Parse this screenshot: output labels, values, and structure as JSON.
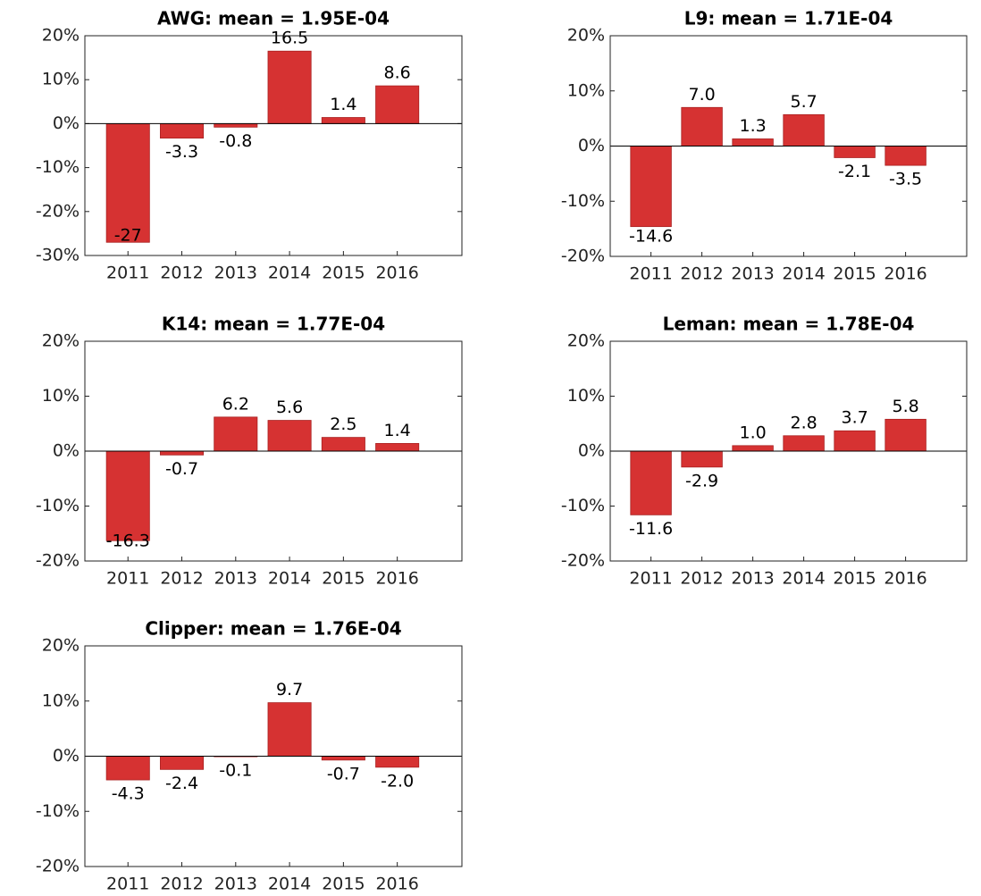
{
  "chart_data": [
    {
      "type": "bar",
      "title": "AWG: mean = 1.95E-04",
      "categories": [
        "2011",
        "2012",
        "2013",
        "2014",
        "2015",
        "2016"
      ],
      "values": [
        -27,
        -3.3,
        -0.8,
        16.5,
        1.4,
        8.6
      ],
      "value_labels": [
        "-27",
        "-3.3",
        "-0.8",
        "16.5",
        "1.4",
        "8.6"
      ],
      "color": "#d63232",
      "ylim": [
        -30,
        20
      ],
      "yticks": [
        {
          "value": -30,
          "label": "-30%"
        },
        {
          "value": -20,
          "label": "-20%"
        },
        {
          "value": -10,
          "label": "-10%"
        },
        {
          "value": 0,
          "label": "0%"
        },
        {
          "value": 10,
          "label": "10%"
        },
        {
          "value": 20,
          "label": "20%"
        }
      ]
    },
    {
      "type": "bar",
      "title": "L9: mean = 1.71E-04",
      "categories": [
        "2011",
        "2012",
        "2013",
        "2014",
        "2015",
        "2016"
      ],
      "values": [
        -14.6,
        7.0,
        1.3,
        5.7,
        -2.1,
        -3.5
      ],
      "value_labels": [
        "-14.6",
        "7.0",
        "1.3",
        "5.7",
        "-2.1",
        "-3.5"
      ],
      "color": "#d63232",
      "ylim": [
        -20,
        20
      ],
      "yticks": [
        {
          "value": -20,
          "label": "-20%"
        },
        {
          "value": -10,
          "label": "-10%"
        },
        {
          "value": 0,
          "label": "0%"
        },
        {
          "value": 10,
          "label": "10%"
        },
        {
          "value": 20,
          "label": "20%"
        }
      ]
    },
    {
      "type": "bar",
      "title": "K14: mean = 1.77E-04",
      "categories": [
        "2011",
        "2012",
        "2013",
        "2014",
        "2015",
        "2016"
      ],
      "values": [
        -16.3,
        -0.7,
        6.2,
        5.6,
        2.5,
        1.4
      ],
      "value_labels": [
        "-16.3",
        "-0.7",
        "6.2",
        "5.6",
        "2.5",
        "1.4"
      ],
      "color": "#d63232",
      "ylim": [
        -20,
        20
      ],
      "yticks": [
        {
          "value": -20,
          "label": "-20%"
        },
        {
          "value": -10,
          "label": "-10%"
        },
        {
          "value": 0,
          "label": "0%"
        },
        {
          "value": 10,
          "label": "10%"
        },
        {
          "value": 20,
          "label": "20%"
        }
      ]
    },
    {
      "type": "bar",
      "title": "Leman: mean = 1.78E-04",
      "categories": [
        "2011",
        "2012",
        "2013",
        "2014",
        "2015",
        "2016"
      ],
      "values": [
        -11.6,
        -2.9,
        1.0,
        2.8,
        3.7,
        5.8
      ],
      "value_labels": [
        "-11.6",
        "-2.9",
        "1.0",
        "2.8",
        "3.7",
        "5.8"
      ],
      "color": "#d63232",
      "ylim": [
        -20,
        20
      ],
      "yticks": [
        {
          "value": -20,
          "label": "-20%"
        },
        {
          "value": -10,
          "label": "-10%"
        },
        {
          "value": 0,
          "label": "0%"
        },
        {
          "value": 10,
          "label": "10%"
        },
        {
          "value": 20,
          "label": "20%"
        }
      ]
    },
    {
      "type": "bar",
      "title": "Clipper: mean = 1.76E-04",
      "categories": [
        "2011",
        "2012",
        "2013",
        "2014",
        "2015",
        "2016"
      ],
      "values": [
        -4.3,
        -2.4,
        -0.1,
        9.7,
        -0.7,
        -2.0
      ],
      "value_labels": [
        "-4.3",
        "-2.4",
        "-0.1",
        "9.7",
        "-0.7",
        "-2.0"
      ],
      "color": "#d63232",
      "ylim": [
        -20,
        20
      ],
      "yticks": [
        {
          "value": -20,
          "label": "-20%"
        },
        {
          "value": -10,
          "label": "-10%"
        },
        {
          "value": 0,
          "label": "0%"
        },
        {
          "value": 10,
          "label": "10%"
        },
        {
          "value": 20,
          "label": "20%"
        }
      ]
    }
  ]
}
